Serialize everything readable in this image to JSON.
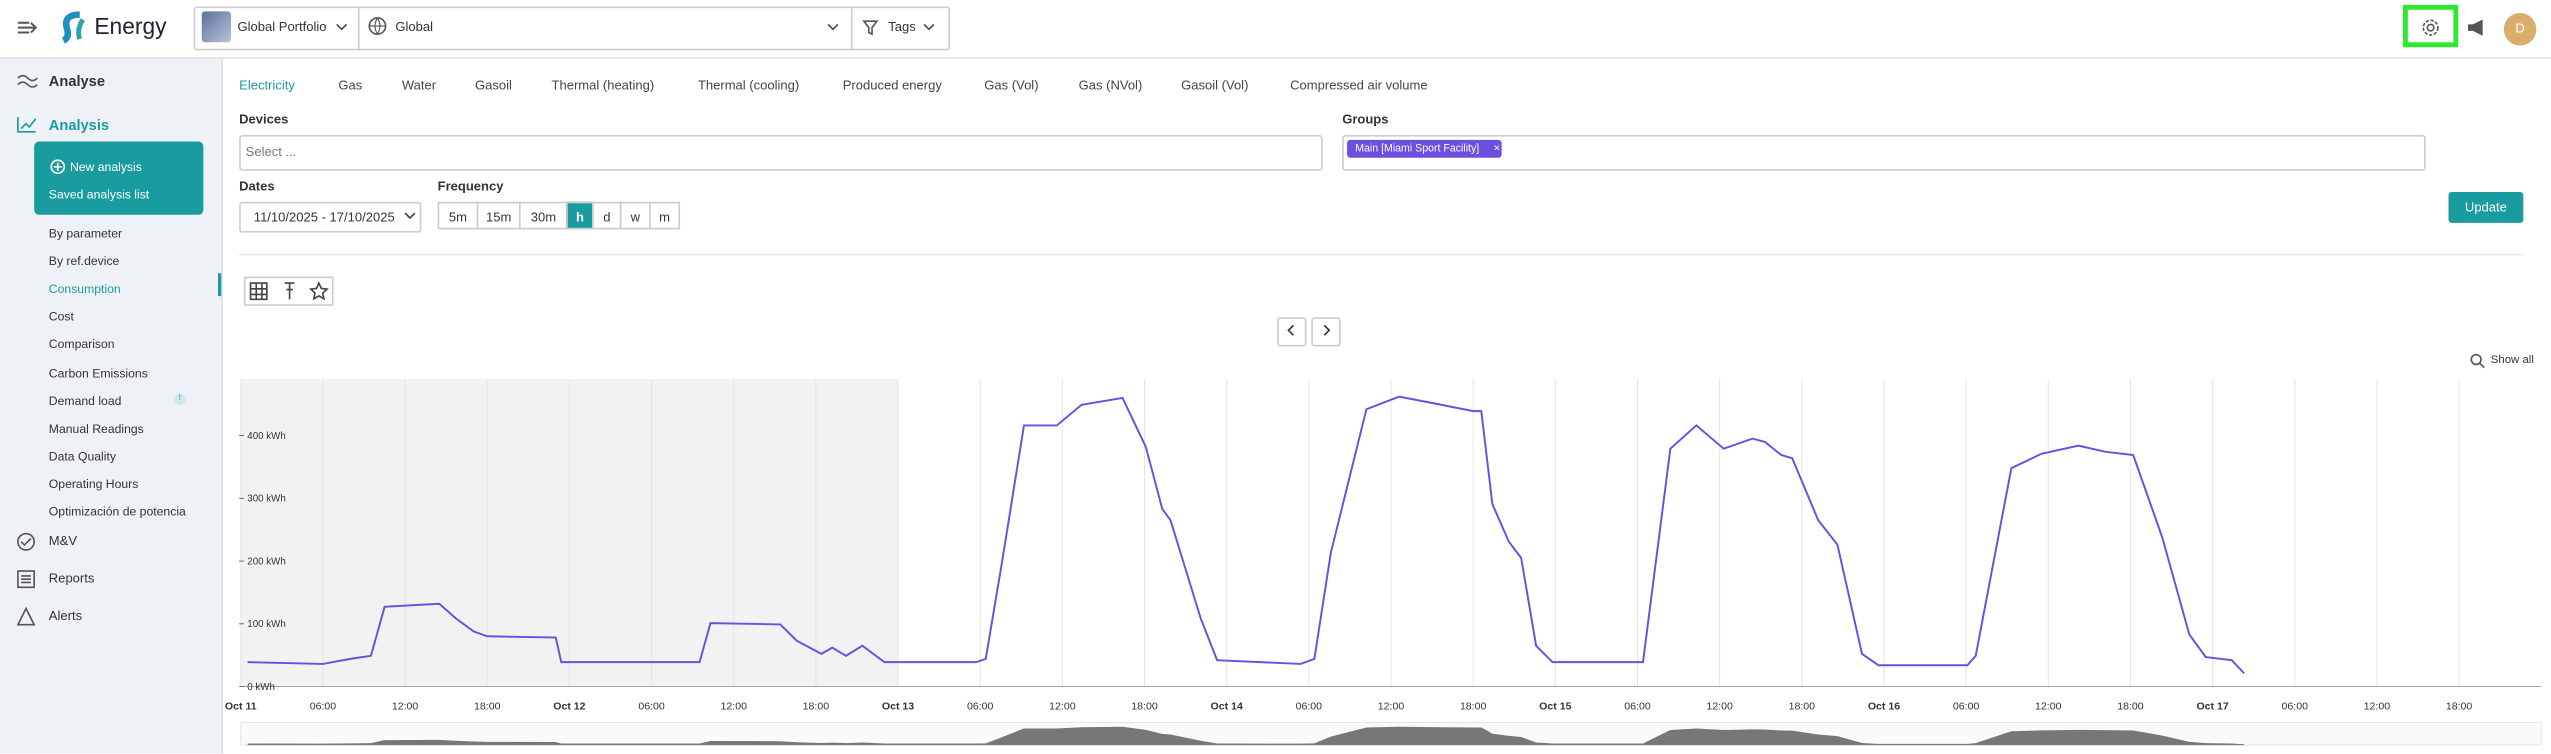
{
  "header": {
    "logo": "Energy",
    "portfolio": "Global Portfolio",
    "scope": "Global",
    "tags": "Tags",
    "avatar": "D"
  },
  "sidebar": {
    "sections": [
      {
        "label": "Analyse"
      },
      {
        "label": "Analysis"
      }
    ],
    "sub_actions": [
      "New analysis",
      "Saved analysis list"
    ],
    "items": [
      "By parameter",
      "By ref.device",
      "Consumption",
      "Cost",
      "Comparison",
      "Carbon Emissions",
      "Demand load",
      "Manual Readings",
      "Data Quality",
      "Operating Hours",
      "Optimización de potencia"
    ],
    "bottom": [
      "M&V",
      "Reports",
      "Alerts"
    ]
  },
  "tabs": [
    "Electricity",
    "Gas",
    "Water",
    "Gasoil",
    "Thermal (heating)",
    "Thermal (cooling)",
    "Produced energy",
    "Gas (Vol)",
    "Gas (NVol)",
    "Gasoil (Vol)",
    "Compressed air volume"
  ],
  "form": {
    "devices_label": "Devices",
    "devices_placeholder": "Select ...",
    "groups_label": "Groups",
    "group_chip": "Main [Miami Sport Facility]",
    "dates_label": "Dates",
    "dates_value": "11/10/2025 - 17/10/2025",
    "frequency_label": "Frequency",
    "frequency_options": [
      "5m",
      "15m",
      "30m",
      "h",
      "d",
      "w",
      "m"
    ],
    "update": "Update"
  },
  "toolbar": {
    "show_all": "Show all"
  },
  "chart_data": {
    "type": "line",
    "color": "#6a4fe0",
    "grid": "x",
    "highlight_xrange": [
      0,
      48
    ],
    "xlim": [
      0,
      168
    ],
    "ylim": [
      0,
      490
    ],
    "xticks": [
      {
        "value": 0,
        "label": "Oct 11"
      },
      {
        "value": 6,
        "label": "06:00"
      },
      {
        "value": 12,
        "label": "12:00"
      },
      {
        "value": 18,
        "label": "18:00"
      },
      {
        "value": 24,
        "label": "Oct 12"
      },
      {
        "value": 30,
        "label": "06:00"
      },
      {
        "value": 36,
        "label": "12:00"
      },
      {
        "value": 42,
        "label": "18:00"
      },
      {
        "value": 48,
        "label": "Oct 13"
      },
      {
        "value": 54,
        "label": "06:00"
      },
      {
        "value": 60,
        "label": "12:00"
      },
      {
        "value": 66,
        "label": "18:00"
      },
      {
        "value": 72,
        "label": "Oct 14"
      },
      {
        "value": 78,
        "label": "06:00"
      },
      {
        "value": 84,
        "label": "12:00"
      },
      {
        "value": 90,
        "label": "18:00"
      },
      {
        "value": 96,
        "label": "Oct 15"
      },
      {
        "value": 102,
        "label": "06:00"
      },
      {
        "value": 108,
        "label": "12:00"
      },
      {
        "value": 114,
        "label": "18:00"
      },
      {
        "value": 120,
        "label": "Oct 16"
      },
      {
        "value": 126,
        "label": "06:00"
      },
      {
        "value": 132,
        "label": "12:00"
      },
      {
        "value": 138,
        "label": "18:00"
      },
      {
        "value": 144,
        "label": "Oct 17"
      },
      {
        "value": 150,
        "label": "06:00"
      },
      {
        "value": 156,
        "label": "12:00"
      },
      {
        "value": 162,
        "label": "18:00"
      }
    ],
    "yticks": [
      {
        "value": 0,
        "label": "0 kWh"
      },
      {
        "value": 100,
        "label": "100 kWh"
      },
      {
        "value": 200,
        "label": "200 kWh"
      },
      {
        "value": 300,
        "label": "300 kWh"
      },
      {
        "value": 400,
        "label": "400 kWh"
      }
    ],
    "x": [
      0.5,
      6,
      8,
      9.5,
      10.5,
      14.5,
      15.7,
      17,
      18,
      23,
      23.4,
      33.5,
      34.3,
      39.4,
      40.6,
      42.4,
      43.2,
      44.2,
      45.4,
      47,
      53.7,
      54.4,
      55.6,
      57.2,
      59.6,
      61.4,
      64.4,
      66.1,
      67.3,
      67.9,
      70.1,
      71.3,
      77.4,
      78.4,
      79.6,
      82.2,
      84.6,
      87,
      90,
      90.6,
      91.4,
      92.6,
      93.5,
      94.6,
      95.8,
      102.4,
      104.4,
      106.3,
      108.3,
      110.4,
      111.3,
      112.5,
      113.3,
      115.2,
      116.6,
      118.4,
      119.6,
      126.1,
      126.7,
      129.3,
      131.5,
      134.2,
      136.2,
      138.2,
      140.3,
      142.3,
      143.5,
      145.4,
      146.3
    ],
    "values": [
      39,
      36,
      44,
      49,
      127,
      132,
      109,
      88,
      80,
      78,
      39,
      39,
      101,
      99,
      73,
      52,
      62,
      49,
      65,
      39,
      39,
      44,
      200,
      416,
      416,
      449,
      460,
      382,
      283,
      265,
      109,
      42,
      36,
      44,
      213,
      442,
      462,
      452,
      439,
      439,
      291,
      231,
      205,
      65,
      39,
      39,
      379,
      416,
      379,
      395,
      390,
      369,
      364,
      265,
      226,
      52,
      34,
      34,
      49,
      348,
      371,
      384,
      374,
      369,
      239,
      83,
      47,
      42,
      21
    ]
  }
}
